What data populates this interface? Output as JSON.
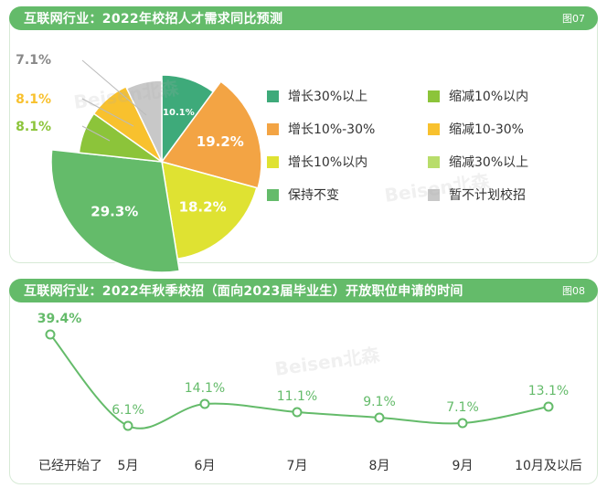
{
  "figure1": {
    "title": "互联网行业：2022年校招人才需求同比预测",
    "tag": "图07"
  },
  "figure2": {
    "title": "互联网行业：2022年秋季校招（面向2023届毕业生）开放职位申请的时间",
    "tag": "图08"
  },
  "watermark": "Beisen北森",
  "chart_data": [
    {
      "type": "pie",
      "title": "互联网行业：2022年校招人才需求同比预测",
      "categories": [
        "增长30%以上",
        "增长10%-30%",
        "增长10%以内",
        "保持不变",
        "缩减10%以内",
        "缩减10-30%",
        "缩减30%以上",
        "暂不计划校招"
      ],
      "values": [
        10.1,
        19.2,
        18.2,
        29.3,
        8.1,
        8.1,
        0,
        7.1
      ],
      "value_labels": [
        "10.1%",
        "19.2%",
        "18.2%",
        "29.3%",
        "8.1%",
        "8.1%",
        "",
        "7.1%"
      ],
      "colors": [
        "#3eaa7a",
        "#f3a444",
        "#dfe232",
        "#64bb6a",
        "#8cc43a",
        "#f8c12e",
        "#b8dd6b",
        "#c8c8c8"
      ],
      "legend_position": "right"
    },
    {
      "type": "line",
      "title": "互联网行业：2022年秋季校招（面向2023届毕业生）开放职位申请的时间",
      "categories": [
        "已经开始了",
        "5月",
        "6月",
        "7月",
        "8月",
        "9月",
        "10月及以后"
      ],
      "values": [
        39.4,
        6.1,
        14.1,
        11.1,
        9.1,
        7.1,
        13.1
      ],
      "value_labels": [
        "39.4%",
        "6.1%",
        "14.1%",
        "11.1%",
        "9.1%",
        "7.1%",
        "13.1%"
      ],
      "color": "#64bb6a",
      "grid": false
    }
  ]
}
